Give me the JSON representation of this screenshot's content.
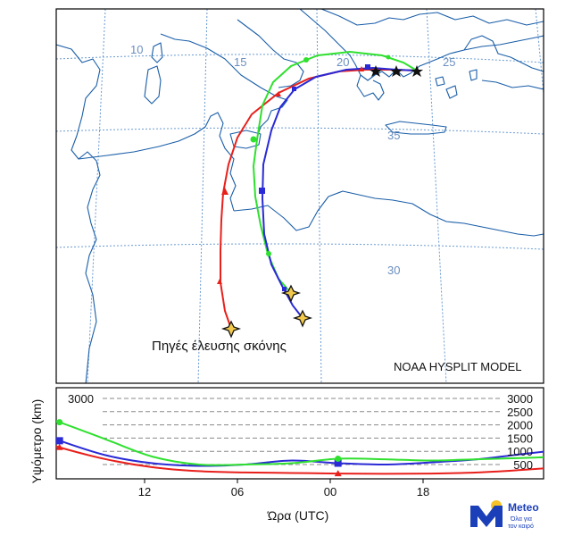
{
  "map": {
    "graticule_labels": {
      "lon": [
        "10",
        "15",
        "20",
        "25"
      ],
      "lat": [
        "35",
        "30"
      ]
    },
    "source_label": "Πηγές έλευσης σκόνης",
    "model_label": "NOAA HYSPLIT MODEL"
  },
  "chart_data": {
    "type": "line",
    "title": "",
    "xlabel": "Ώρα (UTC)",
    "ylabel": "Υψόμετρο (km)",
    "x_ticks": [
      "12",
      "06",
      "00",
      "18"
    ],
    "y_ticks_right": [
      "3000",
      "2500",
      "2000",
      "1500",
      "1000",
      "500"
    ],
    "y_tick_left": "3000",
    "ylim": [
      0,
      3200
    ],
    "grid": "dashed horizontal",
    "x": [
      -30,
      -27,
      -24,
      -21,
      -18,
      -15,
      -12,
      -9,
      -6,
      -3,
      0,
      3,
      6,
      9,
      12,
      15,
      18,
      21,
      24,
      27,
      30
    ],
    "series": [
      {
        "color": "#e8201c",
        "marker": "triangle",
        "values": [
          2950,
          3150,
          3250,
          3180,
          3080,
          2900,
          2500,
          1700,
          1150,
          700,
          400,
          250,
          200,
          180,
          160,
          150,
          160,
          200,
          300,
          420,
          480
        ]
      },
      {
        "color": "#2a2ad6",
        "marker": "square",
        "values": [
          2950,
          2800,
          2650,
          2780,
          2820,
          2700,
          2450,
          2000,
          1400,
          850,
          550,
          450,
          500,
          650,
          550,
          500,
          580,
          700,
          900,
          1100,
          1300
        ]
      },
      {
        "color": "#2fe02f",
        "marker": "circle",
        "values": [
          2950,
          3000,
          2750,
          2950,
          3050,
          3050,
          2950,
          2650,
          2100,
          1450,
          800,
          500,
          500,
          550,
          720,
          700,
          650,
          700,
          750,
          800,
          750
        ]
      }
    ]
  },
  "brand": {
    "name": "Meteo",
    "tagline_1": "Όλα για",
    "tagline_2": "τον καιρό"
  }
}
